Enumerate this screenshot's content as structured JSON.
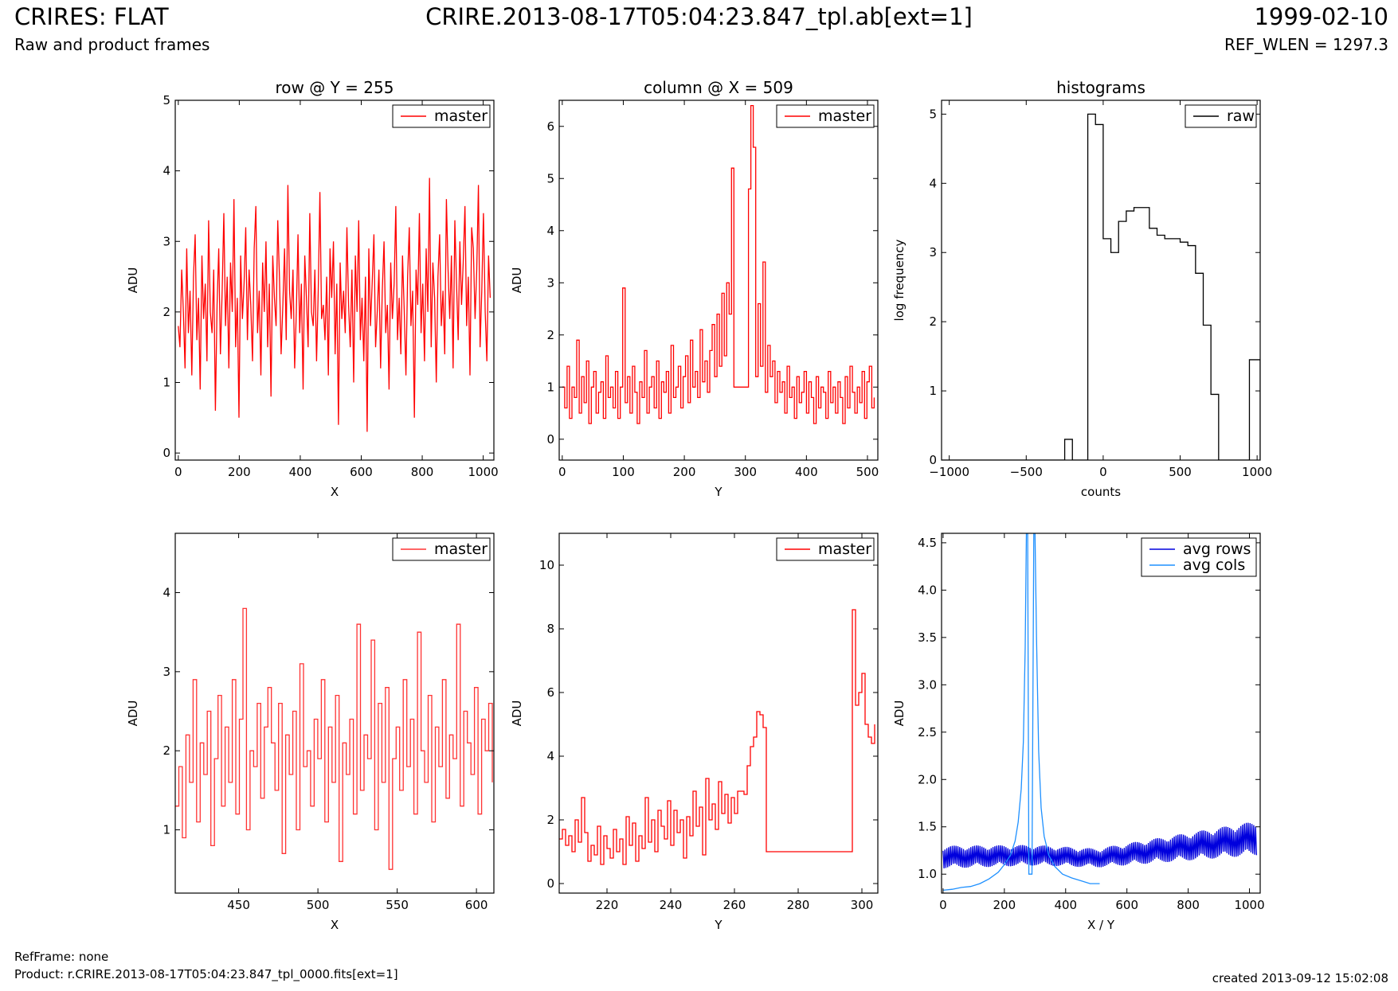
{
  "header": {
    "title_left": "CRIRES: FLAT",
    "subtitle_left": "Raw and product frames",
    "title_center": "CRIRE.2013-08-17T05:04:23.847_tpl.ab[ext=1]",
    "title_right": "1999-02-10",
    "subtitle_right": "REF_WLEN = 1297.3"
  },
  "footer": {
    "refframe": "RefFrame: none",
    "product": "Product: r.CRIRE.2013-08-17T05:04:23.847_tpl_0000.fits[ext=1]",
    "created": "created 2013-09-12 15:02:08"
  },
  "colors": {
    "master": "#ff0000",
    "master_zoom": "#ff3333",
    "raw": "#000000",
    "avg_rows": "#0000dd",
    "avg_cols": "#1e90ff"
  },
  "chart_data": [
    {
      "id": "row-full",
      "type": "line",
      "title": "row @ Y = 255",
      "xlabel": "X",
      "ylabel": "ADU",
      "xlim": [
        -10,
        1035
      ],
      "ylim": [
        -0.1,
        5
      ],
      "xticks": [
        0,
        200,
        400,
        600,
        800,
        1000
      ],
      "yticks": [
        0,
        1,
        2,
        3,
        4,
        5
      ],
      "legend": "top-right",
      "series": [
        {
          "name": "master",
          "color": "#ff0000",
          "x_range": [
            0,
            1023
          ],
          "values": [
            1.8,
            1.5,
            2.6,
            2.0,
            1.2,
            2.9,
            1.7,
            2.3,
            1.1,
            2.5,
            3.1,
            1.6,
            2.2,
            0.9,
            2.8,
            1.9,
            2.4,
            1.3,
            3.3,
            2.0,
            1.7,
            2.6,
            0.6,
            2.1,
            2.9,
            1.4,
            2.3,
            3.4,
            1.8,
            2.5,
            1.2,
            2.7,
            2.0,
            3.6,
            1.5,
            2.2,
            0.5,
            2.8,
            1.9,
            2.4,
            3.2,
            1.6,
            2.6,
            2.1,
            1.3,
            2.9,
            3.5,
            1.7,
            2.3,
            1.1,
            2.7,
            2.0,
            3.0,
            1.5,
            2.4,
            0.8,
            2.8,
            2.2,
            1.8,
            3.3,
            2.5,
            1.4,
            2.1,
            2.9,
            1.6,
            3.8,
            2.3,
            1.9,
            2.6,
            1.2,
            2.0,
            3.1,
            1.7,
            2.4,
            0.9,
            2.8,
            2.2,
            1.5,
            3.4,
            2.0,
            1.8,
            2.6,
            1.3,
            2.3,
            3.7,
            1.9,
            2.1,
            1.6,
            2.5,
            1.1,
            2.9,
            2.2,
            3.0,
            1.4,
            2.4,
            0.4,
            2.7,
            1.9,
            2.3,
            1.7,
            3.2,
            2.1,
            1.5,
            2.6,
            1.0,
            2.8,
            2.0,
            3.3,
            1.6,
            2.2,
            1.3,
            2.5,
            0.3,
            2.9,
            1.8,
            2.4,
            3.1,
            1.5,
            2.0,
            2.6,
            1.2,
            2.3,
            3.0,
            1.7,
            2.1,
            0.9,
            2.7,
            1.9,
            2.4,
            3.5,
            1.6,
            2.2,
            1.4,
            2.8,
            2.0,
            1.1,
            2.5,
            3.2,
            1.8,
            2.3,
            0.5,
            2.6,
            2.1,
            3.4,
            1.7,
            2.4,
            1.3,
            2.9,
            2.0,
            3.9,
            1.5,
            2.7,
            2.2,
            1.0,
            2.5,
            3.1,
            1.8,
            2.3,
            1.4,
            3.6,
            2.6,
            1.9,
            2.8,
            1.2,
            3.3,
            2.4,
            1.6,
            3.0,
            2.1,
            2.7,
            3.5,
            1.8,
            2.5,
            1.1,
            3.2,
            2.9,
            1.9,
            2.6,
            3.8,
            1.5,
            2.3,
            3.4,
            2.0,
            1.3,
            2.8,
            2.2
          ],
          "note": ""
        }
      ]
    },
    {
      "id": "col-full",
      "type": "line",
      "title": "column @ X = 509",
      "xlabel": "Y",
      "ylabel": "ADU",
      "xlim": [
        -5,
        517
      ],
      "ylim": [
        -0.4,
        6.5
      ],
      "xticks": [
        0,
        100,
        200,
        300,
        400,
        500
      ],
      "yticks": [
        0,
        1,
        2,
        3,
        4,
        5,
        6
      ],
      "legend": "top-right",
      "series": [
        {
          "name": "master",
          "color": "#ff0000",
          "step": true,
          "x_range": [
            0,
            511
          ],
          "values": [
            1.0,
            0.6,
            1.4,
            0.4,
            1.0,
            0.8,
            1.9,
            0.5,
            1.2,
            0.7,
            1.5,
            0.3,
            1.0,
            1.3,
            0.5,
            0.9,
            1.1,
            0.4,
            1.6,
            0.8,
            1.0,
            0.6,
            1.3,
            0.4,
            1.0,
            2.9,
            0.7,
            1.2,
            0.5,
            1.4,
            0.9,
            0.3,
            1.1,
            0.8,
            1.7,
            0.5,
            1.0,
            1.2,
            0.6,
            1.5,
            0.4,
            1.1,
            0.9,
            1.3,
            0.5,
            1.8,
            0.8,
            1.0,
            1.4,
            0.6,
            1.2,
            1.6,
            0.7,
            1.9,
            1.0,
            1.3,
            0.8,
            2.1,
            1.1,
            1.5,
            0.9,
            1.7,
            2.2,
            1.2,
            2.4,
            1.4,
            2.8,
            1.6,
            3.0,
            2.4,
            5.2,
            1.0,
            1.0,
            1.0,
            1.0,
            1.0,
            1.0,
            4.8,
            6.4,
            5.6,
            1.2,
            2.6,
            1.4,
            3.4,
            0.9,
            1.8,
            1.2,
            1.5,
            0.7,
            1.3,
            0.9,
            1.1,
            0.5,
            1.4,
            0.8,
            1.0,
            0.4,
            1.2,
            0.7,
            0.9,
            1.3,
            0.5,
            1.1,
            0.8,
            0.3,
            1.2,
            0.6,
            1.0,
            0.9,
            0.4,
            1.3,
            0.7,
            1.0,
            0.5,
            1.1,
            0.8,
            0.3,
            1.2,
            0.6,
            1.4,
            0.9,
            0.5,
            1.0,
            0.7,
            1.3,
            0.4,
            1.1,
            1.4,
            0.6,
            0.8
          ],
          "note": ""
        }
      ]
    },
    {
      "id": "histogram",
      "type": "bar",
      "title": "histograms",
      "xlabel": "counts",
      "ylabel": "log frequency",
      "xlim": [
        -1050,
        1020
      ],
      "ylim": [
        0,
        5.2
      ],
      "xticks": [
        -1000,
        -500,
        0,
        500,
        1000
      ],
      "xticklabels": [
        "−1000",
        "−500",
        "0",
        "500",
        "1000"
      ],
      "yticks": [
        0,
        1,
        2,
        3,
        4,
        5
      ],
      "legend": "top-right",
      "series": [
        {
          "name": "raw",
          "color": "#000000",
          "step": true,
          "edges": [
            -1050,
            -250,
            -200,
            -100,
            -50,
            0,
            50,
            100,
            150,
            200,
            250,
            300,
            350,
            400,
            450,
            500,
            550,
            600,
            650,
            700,
            750,
            800,
            950,
            1000,
            1020
          ],
          "values": [
            0,
            0.3,
            0,
            5.0,
            4.85,
            3.2,
            3.0,
            3.45,
            3.6,
            3.65,
            3.65,
            3.35,
            3.25,
            3.2,
            3.2,
            3.15,
            3.1,
            2.7,
            1.95,
            0.95,
            0,
            0,
            1.45,
            1.45
          ]
        }
      ]
    },
    {
      "id": "row-zoom",
      "type": "line",
      "title": "",
      "xlabel": "X",
      "ylabel": "ADU",
      "xlim": [
        410,
        611
      ],
      "ylim": [
        0.2,
        4.75
      ],
      "xticks": [
        450,
        500,
        550,
        600
      ],
      "yticks": [
        1,
        2,
        3,
        4
      ],
      "legend": "top-right",
      "series": [
        {
          "name": "master",
          "color": "#ff3333",
          "step": true,
          "x_range": [
            410,
            610
          ],
          "values": [
            1.3,
            1.8,
            0.9,
            2.2,
            1.6,
            2.9,
            1.1,
            2.1,
            1.7,
            2.5,
            0.8,
            1.9,
            2.7,
            1.3,
            2.3,
            1.6,
            2.9,
            1.2,
            2.4,
            3.8,
            1.0,
            2.0,
            1.8,
            2.6,
            1.4,
            2.3,
            2.8,
            2.1,
            1.5,
            2.6,
            0.7,
            2.2,
            1.7,
            2.5,
            1.0,
            3.1,
            1.8,
            2.0,
            1.3,
            2.4,
            1.9,
            2.9,
            1.1,
            2.3,
            1.6,
            2.7,
            0.6,
            2.1,
            1.7,
            2.4,
            1.2,
            3.6,
            1.5,
            2.2,
            1.9,
            3.4,
            1.0,
            2.6,
            1.6,
            2.8,
            0.5,
            1.9,
            2.3,
            1.5,
            2.9,
            1.8,
            2.4,
            1.2,
            3.5,
            2.0,
            1.6,
            2.7,
            1.1,
            2.3,
            1.8,
            2.9,
            1.4,
            2.2,
            1.9,
            3.6,
            1.3,
            2.5,
            2.1,
            1.7,
            2.8,
            1.2,
            2.4,
            2.0,
            2.6,
            1.6
          ],
          "note": ""
        }
      ]
    },
    {
      "id": "col-zoom",
      "type": "line",
      "title": "",
      "xlabel": "Y",
      "ylabel": "ADU",
      "xlim": [
        205,
        305
      ],
      "ylim": [
        -0.3,
        11
      ],
      "xticks": [
        220,
        240,
        260,
        280,
        300
      ],
      "yticks": [
        0,
        2,
        4,
        6,
        8,
        10
      ],
      "legend": "top-right",
      "series": [
        {
          "name": "master",
          "color": "#ff0000",
          "step": true,
          "x_range": [
            205,
            304
          ],
          "values": [
            1.4,
            1.7,
            1.2,
            1.5,
            1.0,
            2.0,
            1.3,
            2.7,
            1.6,
            0.7,
            1.2,
            0.9,
            1.8,
            0.6,
            1.5,
            1.1,
            0.8,
            1.7,
            1.0,
            1.4,
            0.6,
            2.1,
            1.2,
            1.9,
            0.7,
            1.5,
            1.1,
            2.7,
            1.3,
            2.0,
            1.0,
            2.3,
            1.8,
            1.4,
            2.6,
            1.2,
            2.3,
            1.6,
            2.0,
            0.8,
            2.1,
            1.5,
            2.9,
            1.8,
            2.4,
            0.9,
            3.3,
            2.0,
            2.5,
            1.7,
            3.2,
            2.2,
            2.8,
            1.9,
            2.7,
            2.2,
            2.9,
            2.9,
            2.8,
            3.7,
            4.3,
            4.6,
            5.4,
            5.3,
            4.9,
            1.0,
            1.0,
            1.0,
            1.0,
            1.0,
            1.0,
            1.0,
            1.0,
            1.0,
            1.0,
            1.0,
            1.0,
            1.0,
            1.0,
            1.0,
            1.0,
            1.0,
            1.0,
            1.0,
            1.0,
            1.0,
            1.0,
            1.0,
            1.0,
            1.0,
            1.0,
            1.0,
            8.6,
            5.6,
            6.0,
            6.6,
            5.0,
            4.6,
            4.4,
            5.0
          ]
        }
      ]
    },
    {
      "id": "averages",
      "type": "line",
      "title": "",
      "xlabel": "X / Y",
      "ylabel": "ADU",
      "xlim": [
        -5,
        1035
      ],
      "ylim": [
        0.8,
        4.6
      ],
      "xticks": [
        0,
        200,
        400,
        600,
        800,
        1000
      ],
      "yticks": [
        1.0,
        1.5,
        2.0,
        2.5,
        3.0,
        3.5,
        4.0,
        4.5
      ],
      "yticklabels": [
        "1.0",
        "1.5",
        "2.0",
        "2.5",
        "3.0",
        "3.5",
        "4.0",
        "4.5"
      ],
      "legend": "top-right",
      "series": [
        {
          "name": "avg rows",
          "color": "#0000dd",
          "x_range": [
            0,
            1023
          ],
          "trend": [
            [
              0,
              1.18
            ],
            [
              300,
              1.2
            ],
            [
              500,
              1.17
            ],
            [
              700,
              1.25
            ],
            [
              1023,
              1.38
            ]
          ],
          "amplitude": [
            [
              0,
              0.12
            ],
            [
              500,
              0.1
            ],
            [
              1023,
              0.18
            ]
          ],
          "points": 340
        },
        {
          "name": "avg cols",
          "color": "#1e90ff",
          "points_xy": [
            [
              0,
              0.83
            ],
            [
              30,
              0.84
            ],
            [
              60,
              0.86
            ],
            [
              90,
              0.87
            ],
            [
              120,
              0.9
            ],
            [
              150,
              0.95
            ],
            [
              180,
              1.02
            ],
            [
              200,
              1.1
            ],
            [
              220,
              1.2
            ],
            [
              235,
              1.35
            ],
            [
              245,
              1.55
            ],
            [
              255,
              1.9
            ],
            [
              262,
              2.4
            ],
            [
              268,
              3.4
            ],
            [
              272,
              4.6
            ],
            [
              276,
              4.6
            ],
            [
              280,
              1.0
            ],
            [
              285,
              1.0
            ],
            [
              290,
              1.0
            ],
            [
              296,
              4.6
            ],
            [
              300,
              4.6
            ],
            [
              305,
              3.5
            ],
            [
              312,
              2.3
            ],
            [
              320,
              1.7
            ],
            [
              330,
              1.4
            ],
            [
              345,
              1.2
            ],
            [
              365,
              1.08
            ],
            [
              390,
              1.0
            ],
            [
              420,
              0.96
            ],
            [
              450,
              0.93
            ],
            [
              480,
              0.9
            ],
            [
              511,
              0.9
            ]
          ]
        }
      ]
    }
  ]
}
